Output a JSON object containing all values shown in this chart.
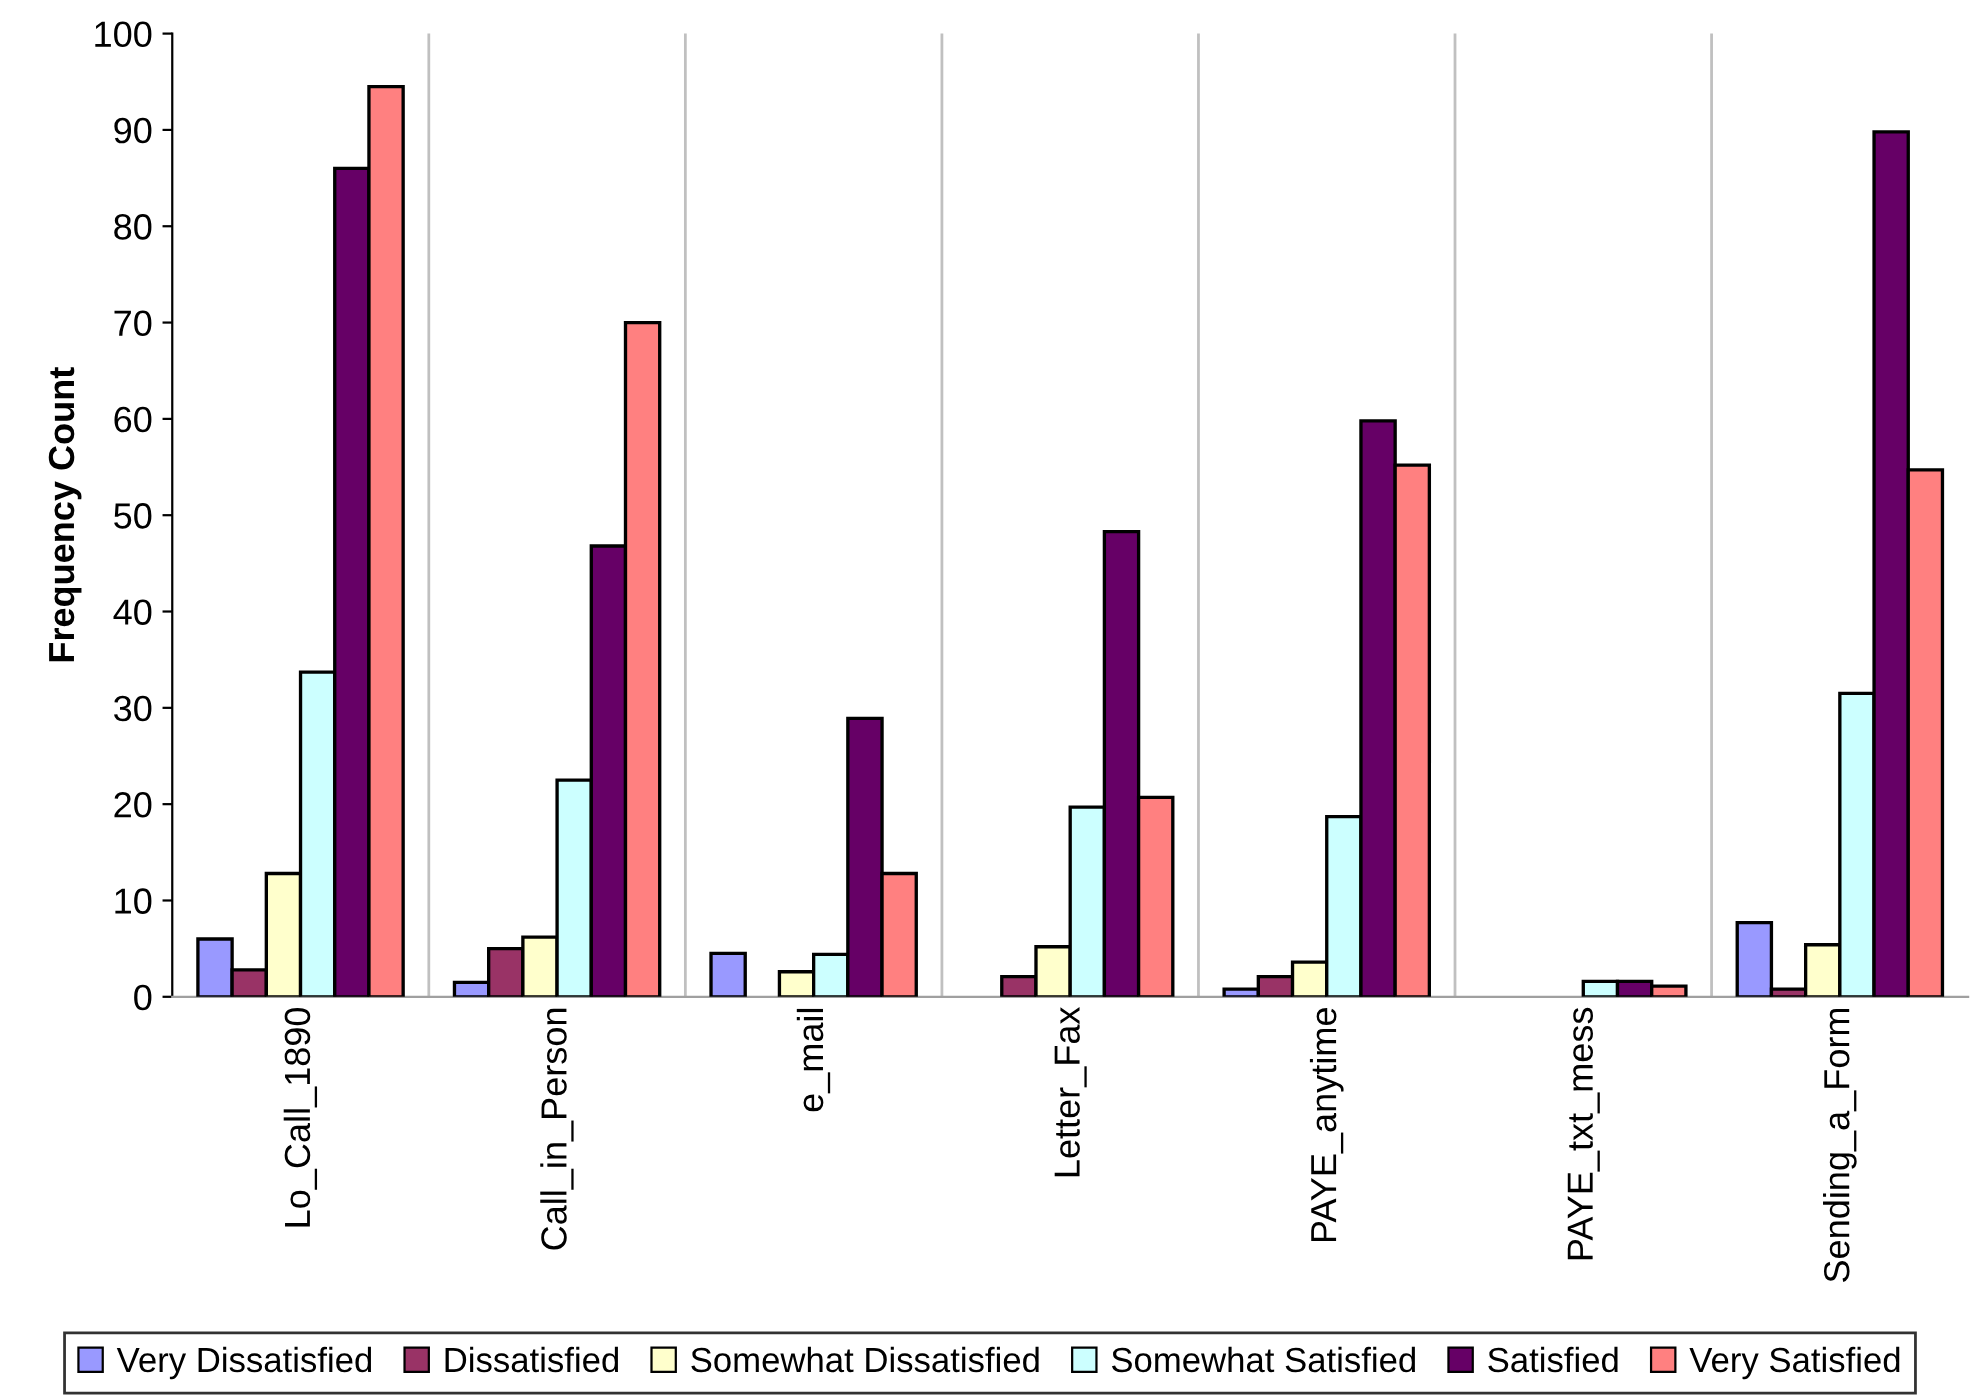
{
  "chart_data": {
    "type": "bar",
    "ylabel": "Frequency Count",
    "categories": [
      "Lo_Call_1890",
      "Call_in_Person",
      "e_mail",
      "Letter_Fax",
      "PAYE_anytime",
      "PAYE_txt_mess",
      "Sending_a_Form"
    ],
    "series": [
      {
        "name": "Very Dissatisfied",
        "color": "#9999ff",
        "values": [
          6,
          1.5,
          4.5,
          null,
          0.8,
          null,
          7.7
        ]
      },
      {
        "name": "Dissatisfied",
        "color": "#993366",
        "values": [
          2.8,
          5,
          null,
          2.1,
          2.1,
          null,
          0.8
        ]
      },
      {
        "name": "Somewhat Dissatisfied",
        "color": "#ffffcc",
        "values": [
          12.8,
          6.2,
          2.6,
          5.2,
          3.6,
          null,
          5.4
        ]
      },
      {
        "name": "Somewhat Satisfied",
        "color": "#ccffff",
        "values": [
          33.7,
          22.5,
          4.4,
          19.7,
          18.7,
          1.6,
          31.5
        ]
      },
      {
        "name": "Satisfied",
        "color": "#660066",
        "values": [
          86,
          46.8,
          28.9,
          48.3,
          59.8,
          1.6,
          89.8
        ]
      },
      {
        "name": "Very Satisfied",
        "color": "#ff8080",
        "values": [
          94.5,
          70,
          12.8,
          20.7,
          55.2,
          1.1,
          54.7
        ]
      }
    ],
    "ylim": [
      0,
      100
    ],
    "yticks": [
      0,
      10,
      20,
      30,
      40,
      50,
      60,
      70,
      80,
      90,
      100
    ],
    "grid": "x",
    "legend": "bottom"
  }
}
